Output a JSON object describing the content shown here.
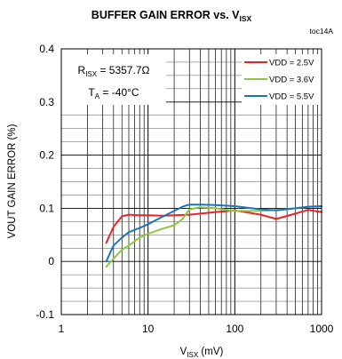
{
  "chart_data": {
    "type": "line",
    "title": {
      "main": "BUFFER GAIN ERROR vs. V",
      "sub": "ISX"
    },
    "tag": "toc14A",
    "xlabel": {
      "pre": "V",
      "sub": "ISX",
      "post": " (mV)"
    },
    "ylabel": "VOUT GAIN ERROR  (%)",
    "x_scale": "log",
    "xlim": [
      1,
      1000
    ],
    "ylim": [
      -0.1,
      0.4
    ],
    "x_ticks": [
      1,
      10,
      100,
      1000
    ],
    "x_tick_labels": [
      "1",
      "10",
      "100",
      "1000"
    ],
    "y_ticks": [
      -0.1,
      0,
      0.1,
      0.2,
      0.3,
      0.4
    ],
    "y_tick_labels": [
      "-0.1",
      "0",
      "0.1",
      "0.2",
      "0.3",
      "0.4"
    ],
    "grid": true,
    "legend_position": "top-right",
    "annotations": [
      {
        "pre": "R",
        "sub": "ISX",
        "post": " = 5357.7Ω"
      },
      {
        "pre": "T",
        "sub": "A",
        "post": " = -40°C"
      }
    ],
    "series": [
      {
        "name": "VDD = 2.5V",
        "color": "#e8262a",
        "x": [
          3.3,
          4,
          5,
          6,
          8,
          10,
          15,
          20,
          30,
          40,
          60,
          100,
          200,
          300,
          500,
          700,
          1000
        ],
        "y": [
          0.035,
          0.065,
          0.085,
          0.088,
          0.087,
          0.087,
          0.086,
          0.087,
          0.088,
          0.09,
          0.093,
          0.096,
          0.088,
          0.08,
          0.09,
          0.097,
          0.093
        ]
      },
      {
        "name": "VDD = 3.6V",
        "color": "#8dc63f",
        "x": [
          3.3,
          4,
          5,
          6,
          8,
          10,
          15,
          20,
          25,
          30,
          40,
          60,
          100,
          200,
          300,
          500,
          700,
          1000
        ],
        "y": [
          -0.01,
          0.005,
          0.022,
          0.03,
          0.045,
          0.052,
          0.062,
          0.068,
          0.08,
          0.098,
          0.102,
          0.1,
          0.095,
          0.095,
          0.097,
          0.1,
          0.103,
          0.103
        ]
      },
      {
        "name": "VDD = 5.5V",
        "color": "#1b75bb",
        "x": [
          3.3,
          4,
          5,
          6,
          8,
          10,
          15,
          20,
          25,
          30,
          40,
          60,
          100,
          200,
          300,
          500,
          700,
          1000
        ],
        "y": [
          0.0,
          0.03,
          0.045,
          0.055,
          0.063,
          0.07,
          0.085,
          0.095,
          0.103,
          0.107,
          0.107,
          0.106,
          0.104,
          0.098,
          0.096,
          0.1,
          0.103,
          0.104
        ]
      }
    ]
  }
}
